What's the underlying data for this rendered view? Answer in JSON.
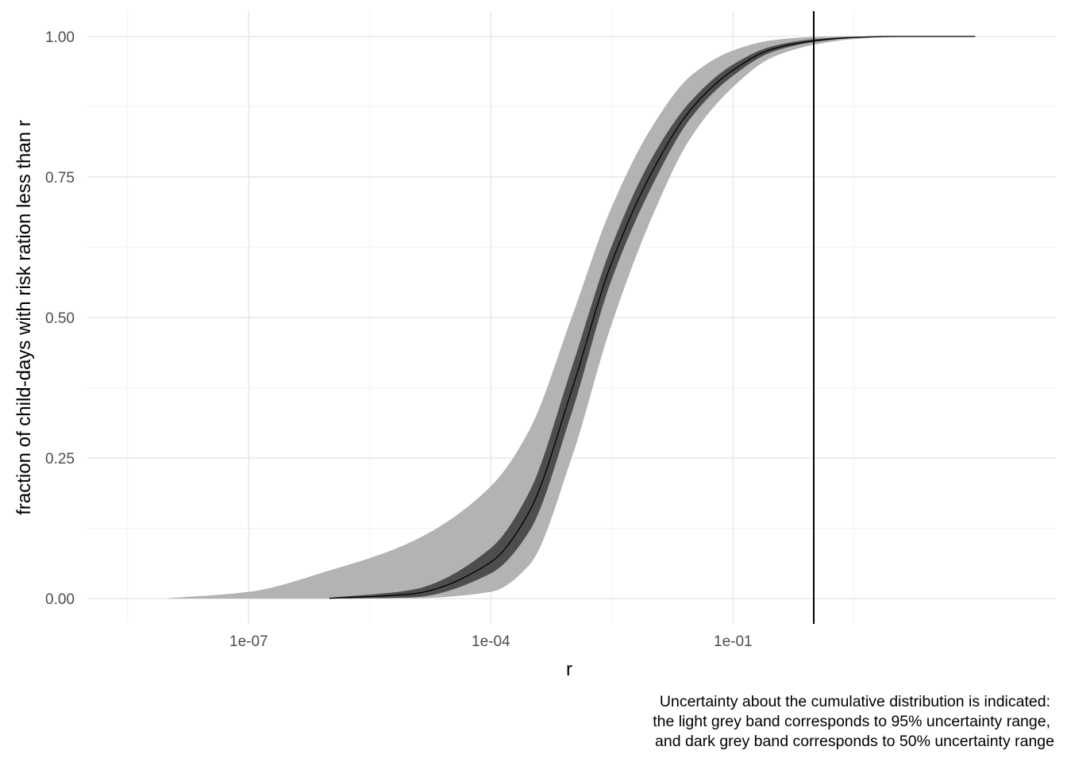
{
  "chart_data": {
    "type": "area",
    "xlabel": "r",
    "ylabel": "fraction of child-days with risk ration less than r",
    "x_scale": "log10",
    "xlim": [
      1e-09,
      1000.0
    ],
    "ylim": [
      -0.045,
      1.045
    ],
    "x_ticks": [
      {
        "value": 1e-07,
        "label": "1e-07"
      },
      {
        "value": 0.0001,
        "label": "1e-04"
      },
      {
        "value": 0.1,
        "label": "1e-01"
      }
    ],
    "y_ticks": [
      {
        "value": 0,
        "label": "0.00"
      },
      {
        "value": 0.25,
        "label": "0.25"
      },
      {
        "value": 0.5,
        "label": "0.50"
      },
      {
        "value": 0.75,
        "label": "0.75"
      },
      {
        "value": 1,
        "label": "1.00"
      }
    ],
    "grid": true,
    "reference_line_x": 1,
    "series": [
      {
        "band": "95",
        "x": [
          1e-08,
          1e-07,
          1e-06,
          1e-05,
          0.0001,
          0.0003,
          0.001,
          0.003,
          0.01,
          0.03,
          0.1,
          0.3,
          1,
          3,
          10,
          100
        ],
        "lower": [
          0,
          0,
          0,
          0.0005,
          0.012,
          0.06,
          0.25,
          0.48,
          0.68,
          0.82,
          0.91,
          0.962,
          0.985,
          0.995,
          0.999,
          1
        ],
        "upper": [
          0.0005,
          0.012,
          0.05,
          0.1,
          0.2,
          0.3,
          0.5,
          0.69,
          0.84,
          0.93,
          0.975,
          0.993,
          0.999,
          1,
          1,
          1
        ]
      },
      {
        "band": "50",
        "x": [
          1e-06,
          1e-05,
          0.0001,
          0.0003,
          0.001,
          0.003,
          0.01,
          0.03,
          0.1,
          0.3,
          1,
          3,
          10,
          100
        ],
        "lower": [
          0,
          0.002,
          0.045,
          0.12,
          0.33,
          0.56,
          0.735,
          0.855,
          0.93,
          0.972,
          0.99,
          0.997,
          1,
          1
        ],
        "upper": [
          0.0015,
          0.015,
          0.09,
          0.19,
          0.41,
          0.62,
          0.785,
          0.885,
          0.95,
          0.982,
          0.995,
          0.999,
          1,
          1
        ]
      },
      {
        "band": "median",
        "x": [
          1e-06,
          1e-05,
          0.0001,
          0.0003,
          0.001,
          0.003,
          0.01,
          0.03,
          0.1,
          0.3,
          1,
          3,
          10,
          100
        ],
        "values": [
          0.0005,
          0.008,
          0.065,
          0.155,
          0.37,
          0.59,
          0.76,
          0.87,
          0.94,
          0.977,
          0.992,
          0.998,
          1,
          1
        ]
      }
    ],
    "colors": {
      "band95": "#b3b3b3",
      "band50": "#4d4d4d",
      "median": "#000000",
      "grid_major": "#ebebeb",
      "grid_minor": "#f4f4f4",
      "vline": "#000000"
    }
  },
  "caption": {
    "lines": [
      "Uncertainty about the cumulative distribution is indicated:",
      "the light grey band corresponds to 95% uncertainty range,",
      "and dark grey band corresponds to 50% uncertainty range"
    ]
  }
}
